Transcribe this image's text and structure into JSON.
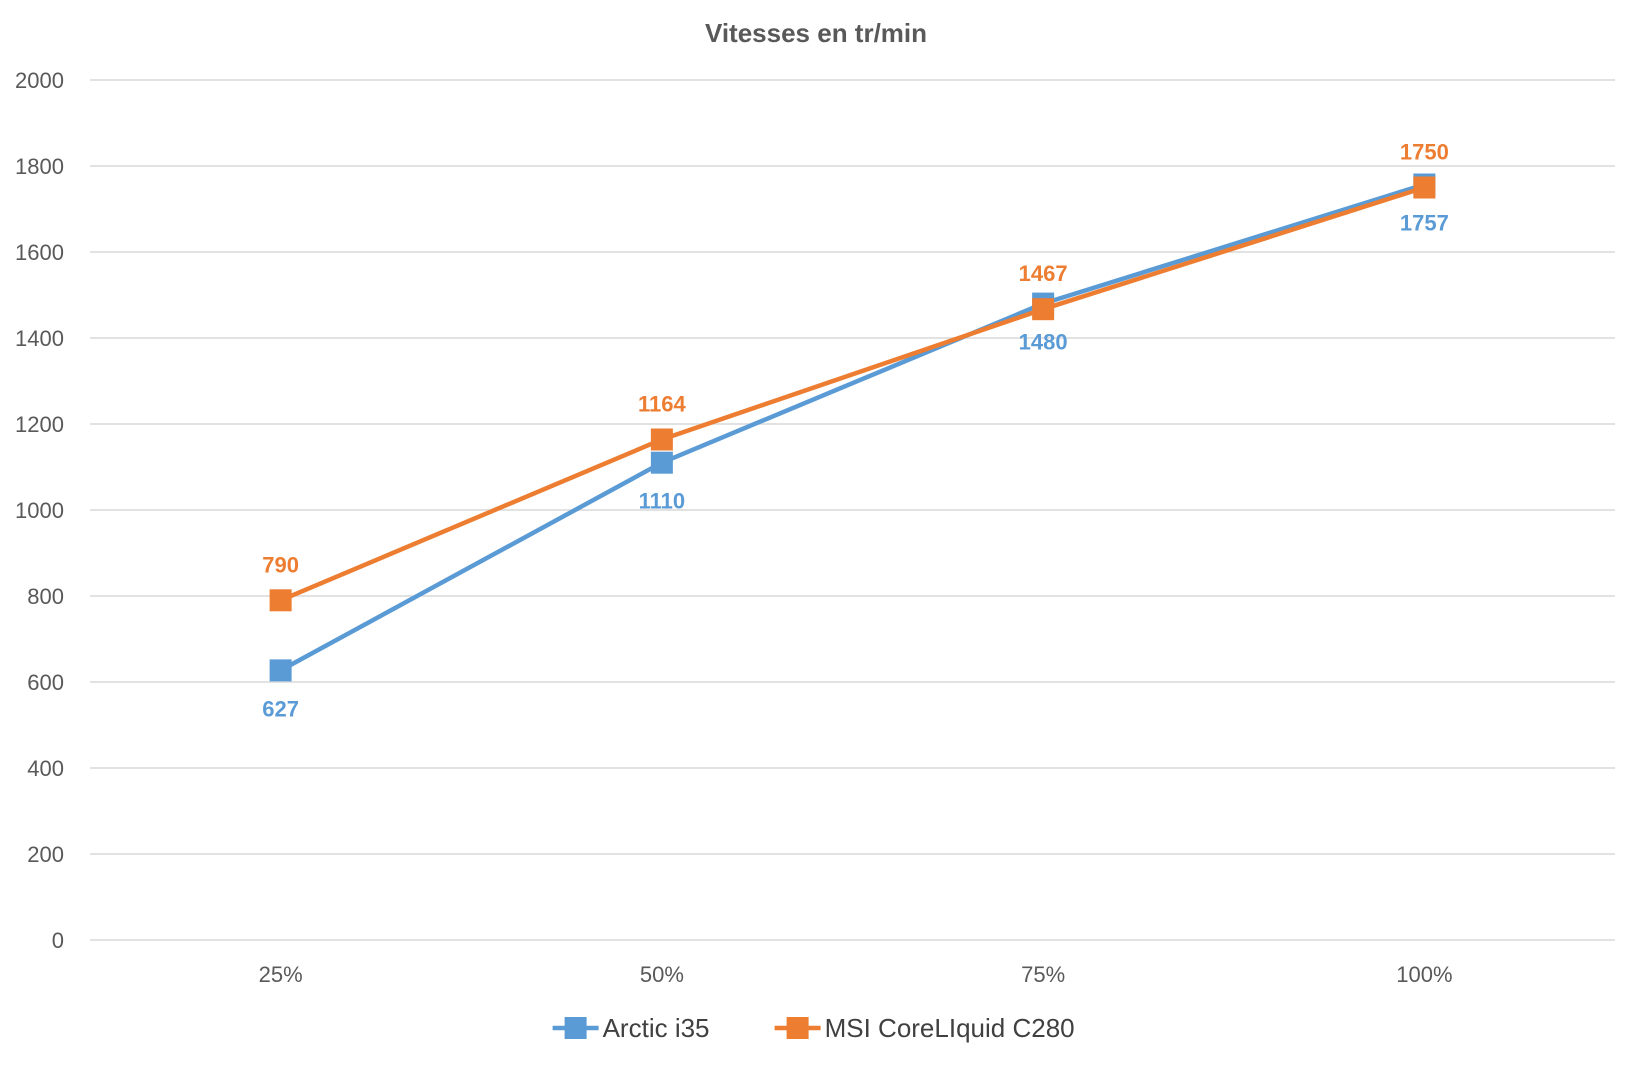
{
  "chart_data": {
    "type": "line",
    "title": "Vitesses en tr/min",
    "xlabel": "",
    "ylabel": "",
    "categories": [
      "25%",
      "50%",
      "75%",
      "100%"
    ],
    "ylim": [
      0,
      2000
    ],
    "yticks": [
      0,
      200,
      400,
      600,
      800,
      1000,
      1200,
      1400,
      1600,
      1800,
      2000
    ],
    "grid": true,
    "legend_position": "bottom",
    "marker": "square",
    "series": [
      {
        "name": "Arctic i35",
        "color": "#5b9bd5",
        "values": [
          627,
          1110,
          1480,
          1757
        ],
        "label_position": "below"
      },
      {
        "name": "MSI CoreLIquid C280",
        "color": "#ed7d31",
        "values": [
          790,
          1164,
          1467,
          1750
        ],
        "label_position": "above"
      }
    ]
  }
}
